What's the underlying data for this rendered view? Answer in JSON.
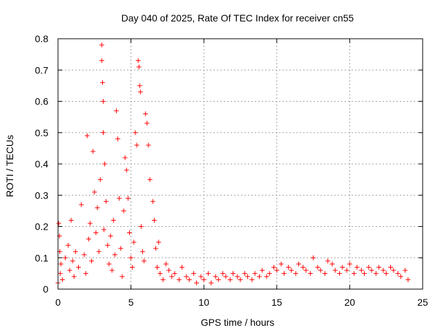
{
  "chart_data": {
    "type": "scatter",
    "title": "Day 040 of 2025, Rate Of TEC Index for receiver cn55",
    "xlabel": "GPS time / hours",
    "ylabel": "ROTI / TECUs",
    "xlim": [
      0,
      25
    ],
    "ylim": [
      0,
      0.8
    ],
    "x_ticks": [
      0,
      5,
      10,
      15,
      20,
      25
    ],
    "x_tick_labels": [
      "0",
      "5",
      "10",
      "15",
      "20",
      "25"
    ],
    "y_ticks": [
      0,
      0.1,
      0.2,
      0.3,
      0.4,
      0.5,
      0.6,
      0.7,
      0.8
    ],
    "y_tick_labels": [
      "0",
      "0.1",
      "0.2",
      "0.3",
      "0.4",
      "0.5",
      "0.6",
      "0.7",
      "0.8"
    ],
    "grid": true,
    "marker": "+",
    "color": "#ff0000",
    "series": [
      {
        "name": "ROTI",
        "x": [
          0.0,
          0.05,
          0.1,
          0.12,
          0.15,
          0.2,
          0.3,
          0.5,
          0.7,
          0.8,
          0.9,
          1.0,
          1.1,
          1.2,
          1.4,
          1.6,
          1.8,
          1.9,
          2.0,
          2.1,
          2.2,
          2.3,
          2.4,
          2.5,
          2.6,
          2.7,
          2.8,
          2.9,
          3.0,
          3.0,
          3.05,
          3.1,
          3.1,
          3.15,
          3.2,
          3.3,
          3.4,
          3.5,
          3.6,
          3.7,
          3.8,
          3.9,
          4.0,
          4.1,
          4.2,
          4.3,
          4.4,
          4.5,
          4.6,
          4.7,
          4.8,
          4.9,
          5.0,
          5.1,
          5.2,
          5.3,
          5.4,
          5.5,
          5.55,
          5.6,
          5.65,
          5.7,
          5.8,
          5.9,
          6.0,
          6.1,
          6.2,
          6.3,
          6.5,
          6.6,
          6.7,
          6.8,
          6.9,
          7.0,
          7.2,
          7.4,
          7.6,
          7.8,
          8.0,
          8.3,
          8.5,
          8.8,
          9.0,
          9.3,
          9.5,
          9.8,
          10.0,
          10.3,
          10.5,
          10.8,
          11.0,
          11.3,
          11.5,
          11.8,
          12.0,
          12.3,
          12.5,
          12.8,
          13.0,
          13.3,
          13.5,
          13.8,
          14.0,
          14.3,
          14.5,
          14.8,
          15.0,
          15.3,
          15.5,
          15.8,
          16.0,
          16.3,
          16.5,
          16.8,
          17.0,
          17.3,
          17.5,
          17.8,
          18.0,
          18.3,
          18.5,
          18.8,
          19.0,
          19.3,
          19.5,
          19.8,
          20.0,
          20.3,
          20.5,
          20.8,
          21.0,
          21.3,
          21.5,
          21.8,
          22.0,
          22.3,
          22.5,
          22.8,
          23.0,
          23.3,
          23.5,
          23.8,
          24.0
        ],
        "y": [
          0.02,
          0.21,
          0.17,
          0.12,
          0.05,
          0.08,
          0.03,
          0.1,
          0.14,
          0.06,
          0.22,
          0.09,
          0.04,
          0.12,
          0.07,
          0.27,
          0.11,
          0.05,
          0.49,
          0.16,
          0.21,
          0.09,
          0.44,
          0.31,
          0.18,
          0.26,
          0.12,
          0.35,
          0.78,
          0.73,
          0.66,
          0.6,
          0.5,
          0.19,
          0.4,
          0.28,
          0.14,
          0.08,
          0.17,
          0.06,
          0.22,
          0.11,
          0.57,
          0.48,
          0.29,
          0.13,
          0.04,
          0.25,
          0.42,
          0.38,
          0.29,
          0.18,
          0.1,
          0.07,
          0.15,
          0.5,
          0.46,
          0.73,
          0.71,
          0.65,
          0.63,
          0.2,
          0.12,
          0.09,
          0.56,
          0.53,
          0.46,
          0.35,
          0.28,
          0.22,
          0.13,
          0.07,
          0.15,
          0.05,
          0.03,
          0.08,
          0.06,
          0.04,
          0.05,
          0.03,
          0.07,
          0.04,
          0.03,
          0.05,
          0.02,
          0.04,
          0.03,
          0.05,
          0.02,
          0.04,
          0.03,
          0.05,
          0.04,
          0.03,
          0.05,
          0.04,
          0.03,
          0.05,
          0.04,
          0.03,
          0.05,
          0.04,
          0.06,
          0.04,
          0.05,
          0.07,
          0.06,
          0.08,
          0.05,
          0.07,
          0.06,
          0.05,
          0.08,
          0.07,
          0.06,
          0.05,
          0.1,
          0.07,
          0.06,
          0.05,
          0.09,
          0.08,
          0.06,
          0.05,
          0.07,
          0.06,
          0.08,
          0.05,
          0.07,
          0.06,
          0.05,
          0.07,
          0.06,
          0.05,
          0.07,
          0.06,
          0.05,
          0.07,
          0.06,
          0.05,
          0.04,
          0.06,
          0.03
        ]
      }
    ]
  }
}
